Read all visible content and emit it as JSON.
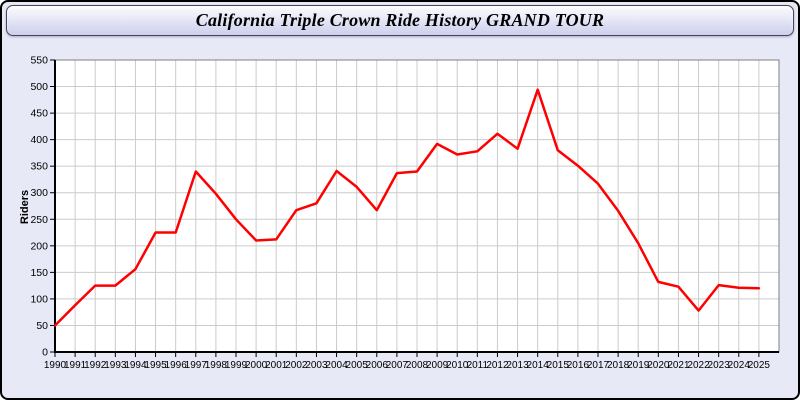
{
  "header": {
    "title": "California Triple Crown Ride History GRAND TOUR"
  },
  "chart_data": {
    "type": "line",
    "title": "California Triple Crown Ride History GRAND TOUR",
    "xlabel": "",
    "ylabel": "Riders",
    "ylim": [
      0,
      550
    ],
    "ytick_step": 50,
    "grid": true,
    "legend": "none",
    "x": [
      1990,
      1991,
      1992,
      1993,
      1994,
      1995,
      1996,
      1997,
      1998,
      1999,
      2000,
      2001,
      2002,
      2003,
      2004,
      2005,
      2006,
      2007,
      2008,
      2009,
      2010,
      2011,
      2012,
      2013,
      2014,
      2015,
      2016,
      2017,
      2018,
      2019,
      2020,
      2021,
      2022,
      2023,
      2024,
      2025
    ],
    "series": [
      {
        "name": "Riders",
        "color": "#ff0000",
        "values": [
          50,
          88,
          125,
          125,
          156,
          225,
          225,
          340,
          298,
          250,
          210,
          212,
          267,
          280,
          341,
          311,
          267,
          337,
          340,
          392,
          372,
          378,
          411,
          383,
          494,
          380,
          351,
          317,
          266,
          205,
          132,
          123,
          78,
          126,
          121,
          120
        ]
      }
    ],
    "colors": {
      "plot_background": "#ffffff",
      "page_background": "#e8e9f7",
      "grid_color": "#cccccc",
      "plot_border_color": "#808080",
      "axis_color": "#000000",
      "line_color": "#ff0000",
      "tick_label_color": "#000000"
    }
  }
}
